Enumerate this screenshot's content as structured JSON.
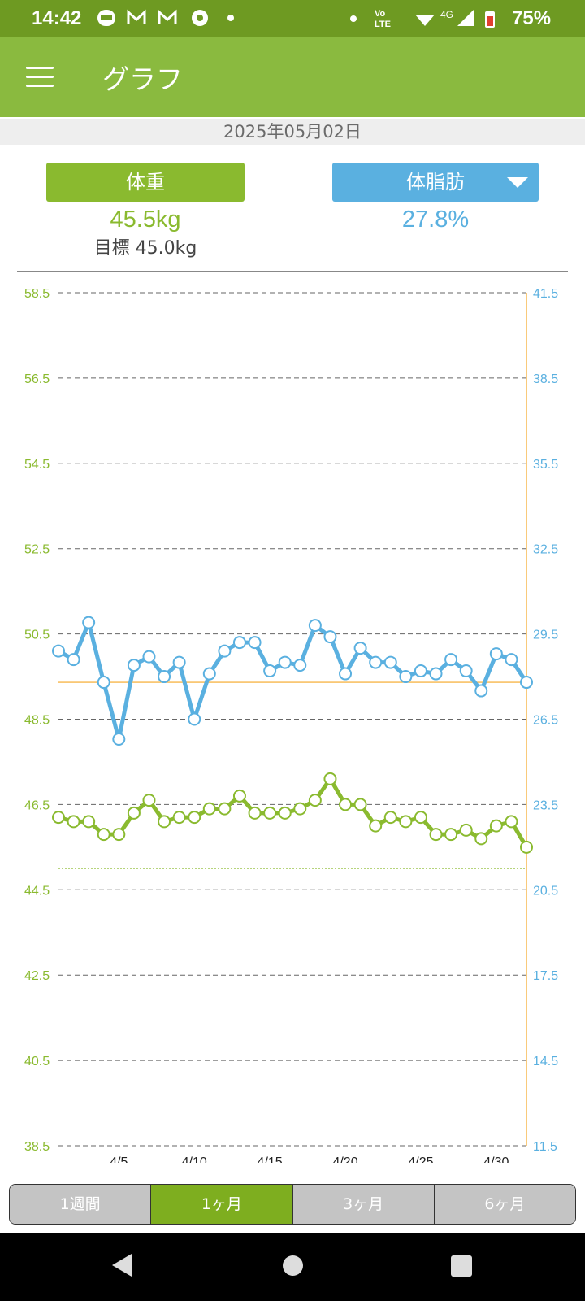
{
  "status": {
    "time": "14:42",
    "battery": "75%",
    "network": "4G"
  },
  "appbar": {
    "title": "グラフ"
  },
  "date": "2025年05月02日",
  "weight": {
    "label": "体重",
    "value": "45.5kg",
    "target": "目標 45.0kg"
  },
  "fat": {
    "label": "体脂肪",
    "value": "27.8%"
  },
  "tabs": [
    "1週間",
    "1ヶ月",
    "3ヶ月",
    "6ヶ月"
  ],
  "colors": {
    "weight": "#8aba2f",
    "fat": "#5ab0e0",
    "target": "#f5a623"
  },
  "chart_data": {
    "type": "line",
    "x_ticks": [
      {
        "day": 5,
        "label": "4/5"
      },
      {
        "day": 10,
        "label": "4/10"
      },
      {
        "day": 15,
        "label": "4/15"
      },
      {
        "day": 20,
        "label": "4/20"
      },
      {
        "day": 25,
        "label": "4/25"
      },
      {
        "day": 30,
        "label": "4/30"
      }
    ],
    "x_range": [
      1,
      32
    ],
    "y_left": {
      "min": 38.5,
      "max": 58.5,
      "ticks": [
        "58.5",
        "56.5",
        "54.5",
        "52.5",
        "50.5",
        "48.5",
        "46.5",
        "44.5",
        "42.5",
        "40.5",
        "38.5"
      ]
    },
    "y_right": {
      "min": 11.5,
      "max": 41.5,
      "ticks": [
        "41.5",
        "38.5",
        "35.5",
        "32.5",
        "29.5",
        "26.5",
        "23.5",
        "20.5",
        "17.5",
        "14.5",
        "11.5"
      ]
    },
    "weight_target": 45.0,
    "fat_target": 27.8,
    "series": [
      {
        "name": "体脂肪",
        "axis": "right",
        "days": [
          1,
          2,
          3,
          4,
          5,
          6,
          7,
          8,
          9,
          10,
          11,
          12,
          13,
          14,
          15,
          16,
          17,
          18,
          19,
          20,
          21,
          22,
          23,
          24,
          25,
          26,
          27,
          28,
          29,
          30,
          31,
          32
        ],
        "values": [
          28.9,
          28.6,
          29.9,
          27.8,
          25.8,
          28.4,
          28.7,
          28.0,
          28.5,
          26.5,
          28.1,
          28.9,
          29.2,
          29.2,
          28.2,
          28.5,
          28.4,
          29.8,
          29.4,
          28.1,
          29.0,
          28.5,
          28.5,
          28.0,
          28.2,
          28.1,
          28.6,
          28.2,
          27.5,
          28.8,
          28.6,
          27.8
        ]
      },
      {
        "name": "体重",
        "axis": "left",
        "days": [
          1,
          2,
          3,
          4,
          5,
          6,
          7,
          8,
          9,
          10,
          11,
          12,
          13,
          14,
          15,
          16,
          17,
          18,
          19,
          20,
          21,
          22,
          23,
          24,
          25,
          26,
          27,
          28,
          29,
          30,
          31,
          32
        ],
        "values": [
          46.2,
          46.1,
          46.1,
          45.8,
          45.8,
          46.3,
          46.6,
          46.1,
          46.2,
          46.2,
          46.4,
          46.4,
          46.7,
          46.3,
          46.3,
          46.3,
          46.4,
          46.6,
          47.1,
          46.5,
          46.5,
          46.0,
          46.2,
          46.1,
          46.2,
          45.8,
          45.8,
          45.9,
          45.7,
          46.0,
          46.1,
          45.5
        ]
      }
    ]
  }
}
